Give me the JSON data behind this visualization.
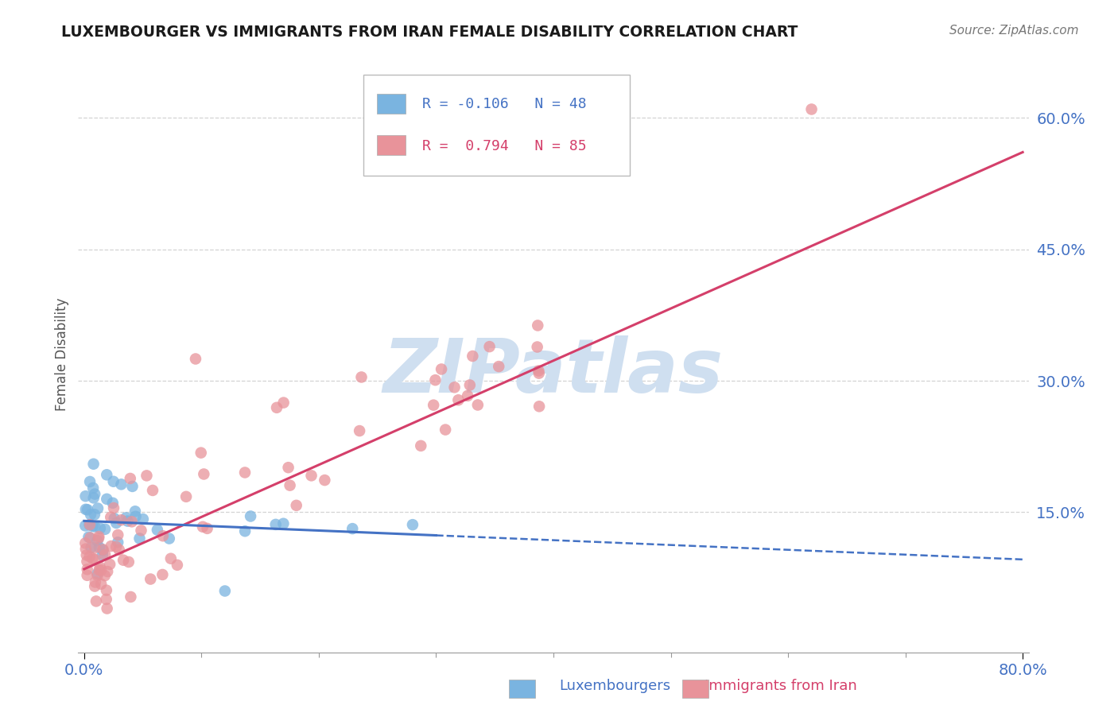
{
  "title": "LUXEMBOURGER VS IMMIGRANTS FROM IRAN FEMALE DISABILITY CORRELATION CHART",
  "source": "Source: ZipAtlas.com",
  "xlabel_blue": "Luxembourgers",
  "xlabel_pink": "Immigrants from Iran",
  "ylabel": "Female Disability",
  "xlim": [
    -0.005,
    0.805
  ],
  "ylim": [
    -0.01,
    0.67
  ],
  "ytick_positions": [
    0.15,
    0.3,
    0.45,
    0.6
  ],
  "ytick_labels": [
    "15.0%",
    "30.0%",
    "45.0%",
    "60.0%"
  ],
  "xtick_positions": [
    0.0,
    0.8
  ],
  "xtick_labels": [
    "0.0%",
    "80.0%"
  ],
  "blue_R": -0.106,
  "blue_N": 48,
  "pink_R": 0.794,
  "pink_N": 85,
  "blue_color": "#7ab4e0",
  "pink_color": "#e8939a",
  "blue_line_color": "#4472c4",
  "pink_line_color": "#d43f6a",
  "watermark": "ZIPatlas",
  "watermark_color": "#cfdff0",
  "background_color": "#ffffff",
  "grid_color": "#c8c8c8",
  "blue_intercept": 0.14,
  "blue_slope": -0.055,
  "pink_intercept": 0.085,
  "pink_slope": 0.595
}
